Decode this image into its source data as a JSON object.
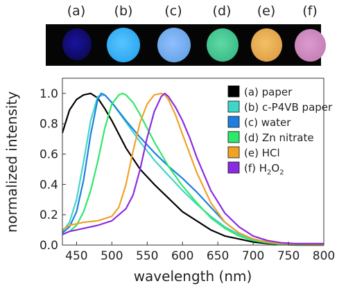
{
  "panel_labels": [
    "(a)",
    "(b)",
    "(c)",
    "(d)",
    "(e)",
    "(f)"
  ],
  "photo_spots": [
    {
      "label": "(a)",
      "color": "#0e0a5c",
      "glow": "#1a12a0"
    },
    {
      "label": "(b)",
      "color": "#2fa9f2",
      "glow": "#58c4ff"
    },
    {
      "label": "(c)",
      "color": "#6aa6e8",
      "glow": "#8fbfff"
    },
    {
      "label": "(d)",
      "color": "#3cbf8a",
      "glow": "#5fd9a5"
    },
    {
      "label": "(e)",
      "color": "#e2a24a",
      "glow": "#f2c165"
    },
    {
      "label": "(f)",
      "color": "#c781b7",
      "glow": "#db9bd0"
    }
  ],
  "chart_data": {
    "type": "line",
    "title": "",
    "xlabel": "wavelength (nm)",
    "ylabel": "normalized intensity",
    "xlim": [
      430,
      800
    ],
    "ylim": [
      0,
      1.1
    ],
    "xticks": [
      450,
      500,
      550,
      600,
      650,
      700,
      750,
      800
    ],
    "yticks": [
      0.0,
      0.2,
      0.4,
      0.6,
      0.8,
      1.0
    ],
    "ytick_labels": [
      "0.0",
      "0.2",
      "0.4",
      "0.6",
      "0.8",
      "1.0"
    ],
    "grid": false,
    "legend_position": "top-right",
    "series": [
      {
        "name": "(a) paper",
        "legend_html": "(a) paper",
        "color": "#000000",
        "x": [
          430,
          440,
          450,
          460,
          470,
          480,
          490,
          500,
          520,
          540,
          560,
          580,
          600,
          620,
          640,
          660,
          680,
          700,
          720,
          740,
          760,
          780,
          800
        ],
        "y": [
          0.74,
          0.89,
          0.96,
          0.99,
          1.0,
          0.97,
          0.9,
          0.82,
          0.64,
          0.5,
          0.4,
          0.31,
          0.22,
          0.16,
          0.1,
          0.06,
          0.04,
          0.02,
          0.01,
          0.005,
          0.0,
          0.0,
          0.0
        ]
      },
      {
        "name": "(b) c-P4VB paper",
        "legend_html": "(b) c-P4VB paper",
        "color": "#3ed6c8",
        "x": [
          430,
          440,
          450,
          460,
          470,
          480,
          490,
          500,
          520,
          540,
          560,
          580,
          600,
          620,
          640,
          660,
          680,
          700,
          720,
          740,
          760,
          780,
          800
        ],
        "y": [
          0.09,
          0.15,
          0.3,
          0.55,
          0.82,
          0.98,
          0.99,
          0.94,
          0.81,
          0.68,
          0.56,
          0.46,
          0.36,
          0.27,
          0.19,
          0.12,
          0.07,
          0.04,
          0.02,
          0.01,
          0.0,
          0.0,
          0.0
        ]
      },
      {
        "name": "(c) water",
        "legend_html": "(c) water",
        "color": "#1d7fe0",
        "x": [
          430,
          440,
          450,
          460,
          470,
          480,
          485,
          490,
          500,
          520,
          540,
          560,
          580,
          600,
          620,
          640,
          660,
          680,
          700,
          720,
          740,
          760,
          780,
          800
        ],
        "y": [
          0.08,
          0.12,
          0.22,
          0.43,
          0.73,
          0.96,
          1.0,
          0.99,
          0.94,
          0.82,
          0.71,
          0.61,
          0.52,
          0.44,
          0.35,
          0.25,
          0.15,
          0.08,
          0.04,
          0.02,
          0.01,
          0.005,
          0.0,
          0.0
        ]
      },
      {
        "name": "(d) Zn nitrate",
        "legend_html": "(d) Zn nitrate",
        "color": "#2ee86a",
        "x": [
          430,
          440,
          450,
          460,
          470,
          480,
          490,
          500,
          510,
          515,
          520,
          530,
          540,
          560,
          580,
          600,
          620,
          640,
          660,
          680,
          700,
          720,
          740,
          760,
          780,
          800
        ],
        "y": [
          0.07,
          0.09,
          0.13,
          0.22,
          0.36,
          0.55,
          0.77,
          0.93,
          0.99,
          1.0,
          0.99,
          0.94,
          0.86,
          0.68,
          0.52,
          0.39,
          0.28,
          0.18,
          0.11,
          0.06,
          0.03,
          0.015,
          0.005,
          0.0,
          0.0,
          0.0
        ]
      },
      {
        "name": "(e) HCl",
        "legend_html": "(e) HCl",
        "color": "#f0a227",
        "x": [
          430,
          440,
          460,
          480,
          500,
          510,
          520,
          530,
          540,
          550,
          560,
          570,
          575,
          580,
          590,
          600,
          620,
          640,
          660,
          680,
          700,
          720,
          740,
          760,
          780,
          800
        ],
        "y": [
          0.1,
          0.13,
          0.15,
          0.16,
          0.19,
          0.25,
          0.4,
          0.62,
          0.81,
          0.93,
          0.99,
          1.0,
          0.99,
          0.96,
          0.86,
          0.73,
          0.48,
          0.28,
          0.15,
          0.08,
          0.04,
          0.02,
          0.01,
          0.005,
          0.0,
          0.0
        ]
      },
      {
        "name": "(f) H2O2",
        "legend_html": "(f) H<tspan font-size='10' dy='4'>2</tspan><tspan dy='-4'>O</tspan><tspan font-size='10' dy='4'>2</tspan>",
        "color": "#8a2be2",
        "x": [
          430,
          440,
          460,
          480,
          500,
          520,
          530,
          540,
          550,
          560,
          570,
          575,
          580,
          590,
          600,
          610,
          620,
          640,
          660,
          680,
          700,
          720,
          740,
          760,
          780,
          800
        ],
        "y": [
          0.07,
          0.09,
          0.11,
          0.13,
          0.16,
          0.24,
          0.33,
          0.5,
          0.71,
          0.88,
          0.98,
          1.0,
          0.98,
          0.91,
          0.82,
          0.71,
          0.58,
          0.36,
          0.21,
          0.12,
          0.06,
          0.03,
          0.015,
          0.01,
          0.01,
          0.01
        ]
      }
    ]
  }
}
